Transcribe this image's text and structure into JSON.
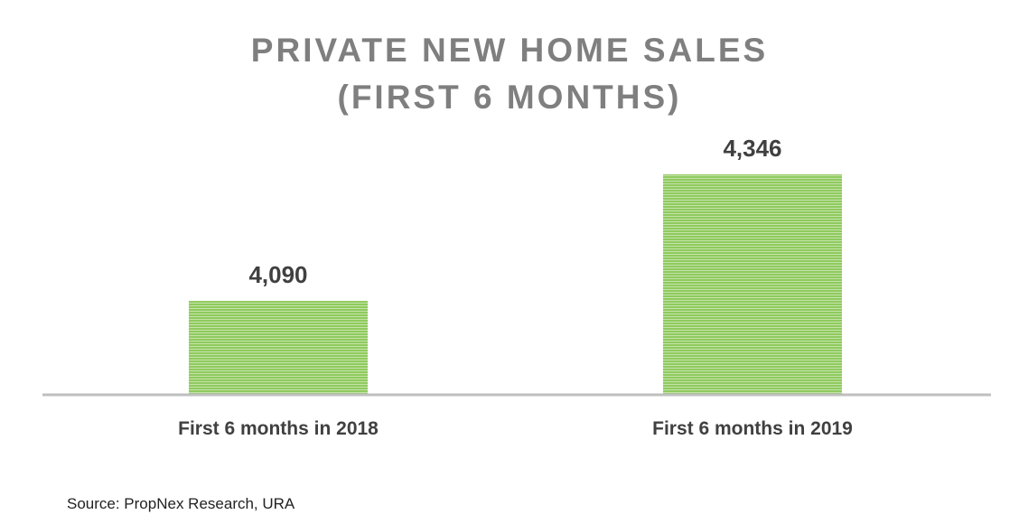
{
  "chart_data": {
    "type": "bar",
    "title_lines": [
      "PRIVATE NEW HOME SALES",
      "(FIRST 6 MONTHS)"
    ],
    "categories": [
      "First 6 months in 2018",
      "First 6 months in 2019"
    ],
    "values": [
      4090,
      4346
    ],
    "data_labels": [
      "4,090",
      "4,346"
    ],
    "xlabel": "",
    "ylabel": "",
    "ylim": [
      3900,
      4400
    ],
    "grid": false,
    "legend": "none",
    "bar_color": "#8fca5e",
    "bar_stripe_color": "#c4e3a8",
    "axis_color": "#bfbfbf",
    "label_color": "#404040"
  },
  "source": "Source: PropNex Research, URA"
}
